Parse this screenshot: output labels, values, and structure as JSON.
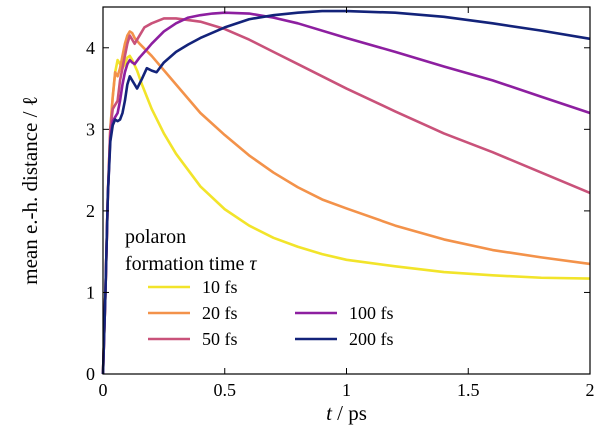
{
  "chart_data": {
    "type": "line",
    "xlabel_var": "t",
    "xlabel_unit": " / ps",
    "ylabel": "mean e.-h. distance / ℓ",
    "xlim": [
      0,
      2
    ],
    "ylim": [
      0,
      4.5
    ],
    "xticks": [
      0,
      0.5,
      1,
      1.5,
      2
    ],
    "xtick_labels": [
      "0",
      "0.5",
      "1",
      "1.5",
      "2"
    ],
    "yticks": [
      0,
      1,
      2,
      3,
      4
    ],
    "ytick_labels": [
      "0",
      "1",
      "2",
      "3",
      "4"
    ],
    "legend": {
      "title_line1": "polaron",
      "title_line2": "formation time ",
      "title_symbol": "τ",
      "placement": "lower-left"
    },
    "series": [
      {
        "name": "10 fs",
        "color": "#f2e42a",
        "points": [
          [
            0,
            0
          ],
          [
            0.01,
            1.0
          ],
          [
            0.02,
            2.2
          ],
          [
            0.03,
            3.0
          ],
          [
            0.04,
            3.4
          ],
          [
            0.05,
            3.7
          ],
          [
            0.06,
            3.85
          ],
          [
            0.07,
            3.8
          ],
          [
            0.08,
            3.75
          ],
          [
            0.09,
            3.8
          ],
          [
            0.1,
            3.88
          ],
          [
            0.11,
            3.9
          ],
          [
            0.12,
            3.85
          ],
          [
            0.14,
            3.72
          ],
          [
            0.16,
            3.55
          ],
          [
            0.18,
            3.4
          ],
          [
            0.2,
            3.25
          ],
          [
            0.25,
            2.95
          ],
          [
            0.3,
            2.7
          ],
          [
            0.4,
            2.3
          ],
          [
            0.5,
            2.02
          ],
          [
            0.6,
            1.82
          ],
          [
            0.7,
            1.67
          ],
          [
            0.8,
            1.56
          ],
          [
            0.9,
            1.47
          ],
          [
            1.0,
            1.4
          ],
          [
            1.2,
            1.32
          ],
          [
            1.4,
            1.25
          ],
          [
            1.6,
            1.21
          ],
          [
            1.8,
            1.18
          ],
          [
            2.0,
            1.17
          ]
        ]
      },
      {
        "name": "20 fs",
        "color": "#f3924a",
        "points": [
          [
            0,
            0
          ],
          [
            0.01,
            1.0
          ],
          [
            0.02,
            2.2
          ],
          [
            0.03,
            3.0
          ],
          [
            0.04,
            3.4
          ],
          [
            0.05,
            3.7
          ],
          [
            0.06,
            3.65
          ],
          [
            0.07,
            3.75
          ],
          [
            0.08,
            3.9
          ],
          [
            0.09,
            4.05
          ],
          [
            0.1,
            4.15
          ],
          [
            0.11,
            4.2
          ],
          [
            0.12,
            4.18
          ],
          [
            0.13,
            4.12
          ],
          [
            0.15,
            4.05
          ],
          [
            0.2,
            3.9
          ],
          [
            0.3,
            3.55
          ],
          [
            0.4,
            3.2
          ],
          [
            0.5,
            2.93
          ],
          [
            0.6,
            2.68
          ],
          [
            0.7,
            2.47
          ],
          [
            0.8,
            2.29
          ],
          [
            0.9,
            2.14
          ],
          [
            1.0,
            2.03
          ],
          [
            1.2,
            1.82
          ],
          [
            1.4,
            1.65
          ],
          [
            1.6,
            1.52
          ],
          [
            1.8,
            1.43
          ],
          [
            2.0,
            1.35
          ]
        ]
      },
      {
        "name": "50 fs",
        "color": "#c9527a",
        "points": [
          [
            0,
            0
          ],
          [
            0.01,
            1.0
          ],
          [
            0.02,
            2.2
          ],
          [
            0.03,
            3.0
          ],
          [
            0.04,
            3.25
          ],
          [
            0.05,
            3.3
          ],
          [
            0.06,
            3.35
          ],
          [
            0.07,
            3.6
          ],
          [
            0.08,
            3.75
          ],
          [
            0.09,
            3.9
          ],
          [
            0.1,
            4.05
          ],
          [
            0.11,
            4.15
          ],
          [
            0.12,
            4.1
          ],
          [
            0.13,
            4.05
          ],
          [
            0.15,
            4.15
          ],
          [
            0.17,
            4.25
          ],
          [
            0.2,
            4.3
          ],
          [
            0.25,
            4.36
          ],
          [
            0.3,
            4.36
          ],
          [
            0.4,
            4.32
          ],
          [
            0.5,
            4.23
          ],
          [
            0.6,
            4.1
          ],
          [
            0.7,
            3.95
          ],
          [
            0.8,
            3.8
          ],
          [
            0.9,
            3.65
          ],
          [
            1.0,
            3.5
          ],
          [
            1.2,
            3.22
          ],
          [
            1.4,
            2.95
          ],
          [
            1.6,
            2.72
          ],
          [
            1.8,
            2.47
          ],
          [
            2.0,
            2.22
          ]
        ]
      },
      {
        "name": "100 fs",
        "color": "#8d1fa0",
        "points": [
          [
            0,
            0
          ],
          [
            0.01,
            1.0
          ],
          [
            0.02,
            2.2
          ],
          [
            0.03,
            2.9
          ],
          [
            0.04,
            3.1
          ],
          [
            0.05,
            3.15
          ],
          [
            0.06,
            3.2
          ],
          [
            0.07,
            3.35
          ],
          [
            0.08,
            3.55
          ],
          [
            0.09,
            3.7
          ],
          [
            0.1,
            3.8
          ],
          [
            0.11,
            3.85
          ],
          [
            0.12,
            3.82
          ],
          [
            0.13,
            3.8
          ],
          [
            0.15,
            3.88
          ],
          [
            0.18,
            3.98
          ],
          [
            0.2,
            4.05
          ],
          [
            0.25,
            4.2
          ],
          [
            0.3,
            4.3
          ],
          [
            0.35,
            4.37
          ],
          [
            0.4,
            4.4
          ],
          [
            0.45,
            4.42
          ],
          [
            0.5,
            4.43
          ],
          [
            0.6,
            4.42
          ],
          [
            0.7,
            4.37
          ],
          [
            0.8,
            4.3
          ],
          [
            1.0,
            4.12
          ],
          [
            1.2,
            3.95
          ],
          [
            1.4,
            3.77
          ],
          [
            1.6,
            3.6
          ],
          [
            1.8,
            3.4
          ],
          [
            2.0,
            3.2
          ]
        ]
      },
      {
        "name": "200 fs",
        "color": "#13237a",
        "points": [
          [
            0,
            0
          ],
          [
            0.01,
            1.0
          ],
          [
            0.02,
            2.2
          ],
          [
            0.03,
            2.85
          ],
          [
            0.04,
            3.05
          ],
          [
            0.05,
            3.12
          ],
          [
            0.06,
            3.1
          ],
          [
            0.07,
            3.12
          ],
          [
            0.08,
            3.2
          ],
          [
            0.09,
            3.35
          ],
          [
            0.1,
            3.55
          ],
          [
            0.11,
            3.65
          ],
          [
            0.12,
            3.6
          ],
          [
            0.13,
            3.55
          ],
          [
            0.14,
            3.5
          ],
          [
            0.16,
            3.62
          ],
          [
            0.18,
            3.75
          ],
          [
            0.2,
            3.72
          ],
          [
            0.22,
            3.7
          ],
          [
            0.25,
            3.82
          ],
          [
            0.3,
            3.95
          ],
          [
            0.35,
            4.04
          ],
          [
            0.4,
            4.12
          ],
          [
            0.5,
            4.25
          ],
          [
            0.6,
            4.35
          ],
          [
            0.7,
            4.4
          ],
          [
            0.8,
            4.43
          ],
          [
            0.9,
            4.45
          ],
          [
            1.0,
            4.45
          ],
          [
            1.2,
            4.43
          ],
          [
            1.4,
            4.38
          ],
          [
            1.6,
            4.3
          ],
          [
            1.8,
            4.21
          ],
          [
            2.0,
            4.11
          ]
        ]
      }
    ]
  }
}
